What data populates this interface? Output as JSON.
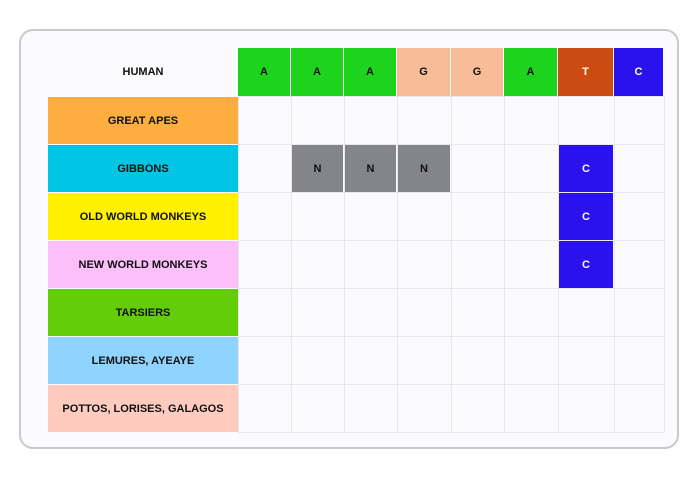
{
  "reference": {
    "label": "HUMAN",
    "bases": [
      {
        "letter": "A",
        "color": "#1ed31e",
        "text_color": "#111111"
      },
      {
        "letter": "A",
        "color": "#1ed31e",
        "text_color": "#111111"
      },
      {
        "letter": "A",
        "color": "#1ed31e",
        "text_color": "#111111"
      },
      {
        "letter": "G",
        "color": "#f8bd98",
        "text_color": "#111111"
      },
      {
        "letter": "G",
        "color": "#f8bd98",
        "text_color": "#111111"
      },
      {
        "letter": "A",
        "color": "#1ed31e",
        "text_color": "#111111"
      },
      {
        "letter": "T",
        "color": "#cc4b12",
        "text_color": "#ffffff"
      },
      {
        "letter": "C",
        "color": "#2a12ee",
        "text_color": "#ffffff"
      }
    ]
  },
  "groups": [
    {
      "label": "GREAT APES",
      "color": "#fdae3e"
    },
    {
      "label": "GIBBONS",
      "color": "#02c5e3"
    },
    {
      "label": "OLD WORLD MONKEYS",
      "color": "#fff100"
    },
    {
      "label": "NEW WORLD MONKEYS",
      "color": "#fcbffa"
    },
    {
      "label": "TARSIERS",
      "color": "#63cd0a"
    },
    {
      "label": "LEMURES, AYEAYE",
      "color": "#8fd3ff"
    },
    {
      "label": "POTTOS, LORISES, GALAGOS",
      "color": "#ffcbbf"
    }
  ],
  "mutations": [
    {
      "row": 1,
      "col": 1,
      "letter": "N",
      "color": "#84848c",
      "text_color": "#111111"
    },
    {
      "row": 1,
      "col": 2,
      "letter": "N",
      "color": "#84848c",
      "text_color": "#111111"
    },
    {
      "row": 1,
      "col": 3,
      "letter": "N",
      "color": "#84848c",
      "text_color": "#111111"
    },
    {
      "row": 1,
      "col": 6,
      "letter": "C",
      "color": "#2a12ee",
      "text_color": "#ffffff"
    },
    {
      "row": 2,
      "col": 6,
      "letter": "C",
      "color": "#2a12ee",
      "text_color": "#ffffff"
    },
    {
      "row": 3,
      "col": 6,
      "letter": "C",
      "color": "#2a12ee",
      "text_color": "#ffffff"
    }
  ]
}
